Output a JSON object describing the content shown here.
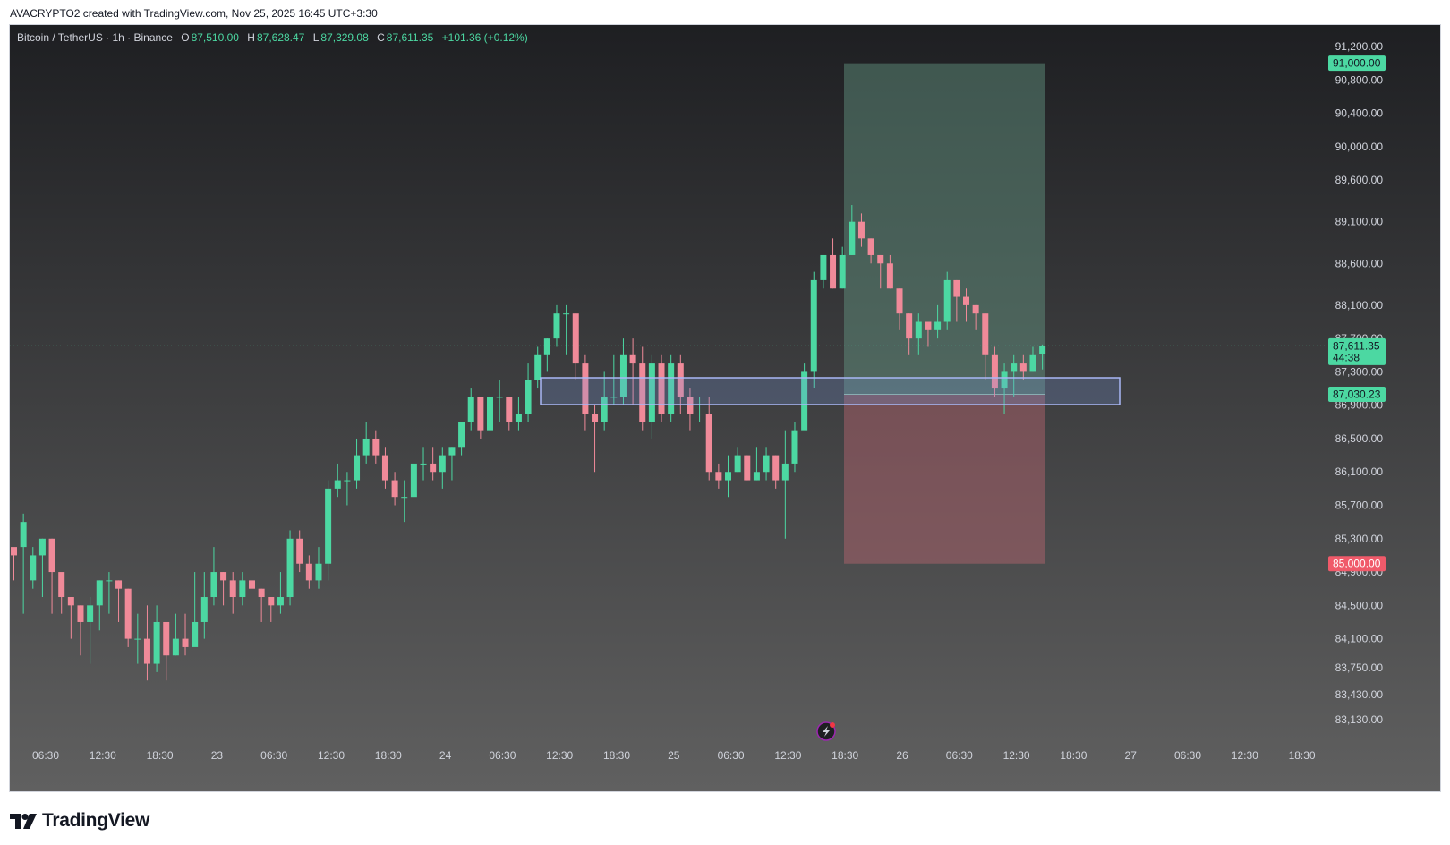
{
  "caption": "AVACRYPTO2 created with TradingView.com, Nov 25, 2025 16:45 UTC+3:30",
  "legend": {
    "symbol": "Bitcoin / TetherUS · 1h · Binance",
    "open_label": "O",
    "open": "87,510.00",
    "high_label": "H",
    "high": "87,628.47",
    "low_label": "L",
    "low": "87,329.08",
    "close_label": "C",
    "close": "87,611.35",
    "change": "+101.36 (+0.12%)"
  },
  "brand": "TradingView",
  "colors": {
    "up": "#4cd8a2",
    "down": "#f08a99",
    "bg_top": "#1e1f22",
    "bg_bottom": "#606060",
    "profit_zone": "rgba(102,153,132,0.45)",
    "loss_zone": "rgba(186,102,112,0.45)",
    "zone_border": "#a9b7f5",
    "price_tag": "#4cd8a2",
    "stop_tag": "#f05a6a"
  },
  "icons": {
    "replay": "lightning-icon"
  },
  "chart_data": {
    "type": "candlestick",
    "symbol": "Bitcoin / TetherUS",
    "interval": "1h",
    "exchange": "Binance",
    "ylim": [
      82900,
      91500
    ],
    "y_ticks": [
      "91,200.00",
      "90,800.00",
      "90,400.00",
      "90,000.00",
      "89,600.00",
      "89,100.00",
      "88,600.00",
      "88,100.00",
      "87,700.00",
      "87,300.00",
      "86,900.00",
      "86,500.00",
      "86,100.00",
      "85,700.00",
      "85,300.00",
      "84,900.00",
      "84,500.00",
      "84,100.00",
      "83,750.00",
      "83,430.00",
      "83,130.00"
    ],
    "x_ticks": [
      "06:30",
      "12:30",
      "18:30",
      "23",
      "06:30",
      "12:30",
      "18:30",
      "24",
      "06:30",
      "12:30",
      "18:30",
      "25",
      "06:30",
      "12:30",
      "18:30",
      "26",
      "06:30",
      "12:30",
      "18:30",
      "27",
      "06:30",
      "12:30",
      "18:30"
    ],
    "current_price": "87,611.35",
    "countdown": "44:38",
    "take_profit": "91,000.00",
    "stop_loss": "85,000.00",
    "entry": "87,030.23",
    "candles": [
      [
        85200,
        85100,
        85100,
        84800
      ],
      [
        85200,
        85500,
        85600,
        84400
      ],
      [
        84800,
        85100,
        85200,
        84700
      ],
      [
        85100,
        85300,
        85300,
        84600
      ],
      [
        85300,
        84900,
        85300,
        84400
      ],
      [
        84900,
        84600,
        84700,
        84400
      ],
      [
        84600,
        84500,
        84600,
        84100
      ],
      [
        84500,
        84300,
        84500,
        83900
      ],
      [
        84300,
        84500,
        84600,
        83800
      ],
      [
        84500,
        84800,
        84800,
        84200
      ],
      [
        84800,
        84800,
        84900,
        84400
      ],
      [
        84800,
        84700,
        84800,
        84300
      ],
      [
        84700,
        84100,
        84700,
        84000
      ],
      [
        84100,
        84100,
        84400,
        83800
      ],
      [
        84100,
        83800,
        84500,
        83600
      ],
      [
        83800,
        84300,
        84500,
        83700
      ],
      [
        84300,
        83900,
        84300,
        83600
      ],
      [
        83900,
        84100,
        84400,
        83900
      ],
      [
        84100,
        84000,
        84400,
        83900
      ],
      [
        84000,
        84300,
        84900,
        84100
      ],
      [
        84300,
        84600,
        84900,
        84100
      ],
      [
        84600,
        84900,
        85200,
        84500
      ],
      [
        84900,
        84800,
        84900,
        84500
      ],
      [
        84800,
        84600,
        84900,
        84400
      ],
      [
        84600,
        84800,
        84900,
        84500
      ],
      [
        84800,
        84700,
        84800,
        84500
      ],
      [
        84700,
        84600,
        84700,
        84300
      ],
      [
        84600,
        84500,
        84600,
        84300
      ],
      [
        84500,
        84600,
        84900,
        84400
      ],
      [
        84600,
        85300,
        85400,
        84500
      ],
      [
        85300,
        85000,
        85400,
        84900
      ],
      [
        85000,
        84800,
        85100,
        84700
      ],
      [
        84800,
        85000,
        85200,
        84700
      ],
      [
        85000,
        85900,
        86000,
        84800
      ],
      [
        85900,
        86000,
        86200,
        85800
      ],
      [
        86000,
        86000,
        86100,
        85700
      ],
      [
        86000,
        86300,
        86500,
        85900
      ],
      [
        86300,
        86500,
        86700,
        86200
      ],
      [
        86500,
        86300,
        86600,
        86200
      ],
      [
        86300,
        86000,
        86400,
        85900
      ],
      [
        86000,
        85800,
        86100,
        85700
      ],
      [
        85800,
        85800,
        86000,
        85500
      ],
      [
        85800,
        86200,
        86200,
        85800
      ],
      [
        86200,
        86200,
        86400,
        86000
      ],
      [
        86200,
        86100,
        86400,
        86000
      ],
      [
        86100,
        86300,
        86400,
        85900
      ],
      [
        86300,
        86400,
        86400,
        86000
      ],
      [
        86400,
        86700,
        86700,
        86300
      ],
      [
        86700,
        87000,
        87100,
        86600
      ],
      [
        87000,
        86600,
        87000,
        86500
      ],
      [
        86600,
        87000,
        87100,
        86500
      ],
      [
        87000,
        87000,
        87200,
        86700
      ],
      [
        87000,
        86700,
        87000,
        86600
      ],
      [
        86700,
        86800,
        87000,
        86600
      ],
      [
        86800,
        87200,
        87400,
        86700
      ],
      [
        87200,
        87500,
        87600,
        87100
      ],
      [
        87500,
        87700,
        87700,
        87300
      ],
      [
        87700,
        88000,
        88100,
        87600
      ],
      [
        88000,
        88000,
        88100,
        87500
      ],
      [
        88000,
        87400,
        88000,
        87200
      ],
      [
        87400,
        86800,
        87500,
        86600
      ],
      [
        86800,
        86700,
        86900,
        86100
      ],
      [
        86700,
        87000,
        87300,
        86600
      ],
      [
        87000,
        87000,
        87500,
        86900
      ],
      [
        87000,
        87500,
        87700,
        86900
      ],
      [
        87500,
        87400,
        87700,
        86900
      ],
      [
        87400,
        86700,
        87600,
        86600
      ],
      [
        86700,
        87400,
        87500,
        86500
      ],
      [
        87400,
        86800,
        87500,
        86700
      ],
      [
        86800,
        87400,
        87500,
        86700
      ],
      [
        87400,
        87000,
        87500,
        86800
      ],
      [
        87000,
        86800,
        87100,
        86600
      ],
      [
        86800,
        86800,
        87000,
        86700
      ],
      [
        86800,
        86100,
        87000,
        86000
      ],
      [
        86100,
        86000,
        86200,
        85900
      ],
      [
        86000,
        86100,
        86300,
        85800
      ],
      [
        86100,
        86300,
        86400,
        86100
      ],
      [
        86300,
        86000,
        86300,
        86000
      ],
      [
        86000,
        86100,
        86400,
        86000
      ],
      [
        86100,
        86300,
        86400,
        86000
      ],
      [
        86300,
        86000,
        86300,
        85900
      ],
      [
        86000,
        86200,
        86600,
        85300
      ],
      [
        86200,
        86600,
        86700,
        86100
      ],
      [
        86600,
        87300,
        87400,
        86700
      ],
      [
        87300,
        88400,
        88500,
        87100
      ],
      [
        88400,
        88700,
        88700,
        88300
      ],
      [
        88700,
        88300,
        88900,
        88300
      ],
      [
        88300,
        88700,
        88800,
        88300
      ],
      [
        88700,
        89100,
        89300,
        88700
      ],
      [
        89100,
        88900,
        89200,
        88800
      ],
      [
        88900,
        88700,
        88900,
        88600
      ],
      [
        88700,
        88600,
        88700,
        88300
      ],
      [
        88600,
        88300,
        88700,
        88300
      ],
      [
        88300,
        88000,
        88300,
        87800
      ],
      [
        88000,
        87700,
        88000,
        87500
      ],
      [
        87700,
        87900,
        88000,
        87500
      ],
      [
        87900,
        87800,
        87900,
        87600
      ],
      [
        87800,
        87900,
        88100,
        87700
      ],
      [
        87900,
        88400,
        88500,
        87800
      ],
      [
        88400,
        88200,
        88400,
        87900
      ],
      [
        88200,
        88100,
        88300,
        87900
      ],
      [
        88100,
        88000,
        88100,
        87800
      ],
      [
        88000,
        87500,
        88000,
        87200
      ],
      [
        87500,
        87100,
        87600,
        87000
      ],
      [
        87100,
        87300,
        87400,
        86800
      ],
      [
        87300,
        87400,
        87500,
        87000
      ],
      [
        87400,
        87300,
        87500,
        87200
      ],
      [
        87300,
        87500,
        87600,
        87300
      ],
      [
        87510,
        87611,
        87628,
        87329
      ]
    ]
  }
}
